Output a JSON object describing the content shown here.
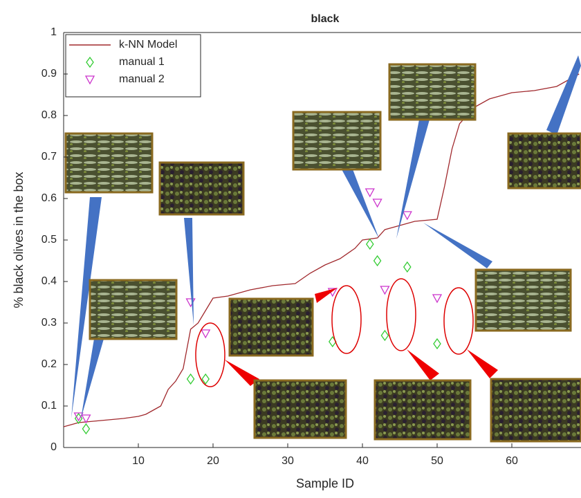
{
  "chart_data": {
    "type": "line",
    "title": "black",
    "x_label": "Sample ID",
    "y_label": "% black olives in the box",
    "xlim": [
      0,
      69
    ],
    "ylim": [
      0,
      1
    ],
    "xticks": [
      10,
      20,
      30,
      40,
      50,
      60
    ],
    "yticks": [
      0,
      0.1,
      0.2,
      0.3,
      0.4,
      0.5,
      0.6,
      0.7,
      0.8,
      0.9,
      1
    ],
    "legend": "top-left",
    "series": [
      {
        "name": "k-NN Model",
        "color": "#a0282c",
        "style": "step-line",
        "x": [
          0,
          1,
          2,
          5,
          8,
          10,
          11,
          12,
          13,
          14,
          15,
          16,
          17,
          18,
          19,
          20,
          22,
          25,
          28,
          31,
          33,
          35,
          37,
          39,
          40,
          42,
          43,
          45,
          47,
          50,
          51,
          52,
          53,
          55,
          57,
          60,
          63,
          66,
          69
        ],
        "values": [
          0.05,
          0.055,
          0.06,
          0.065,
          0.07,
          0.075,
          0.08,
          0.09,
          0.1,
          0.14,
          0.16,
          0.19,
          0.285,
          0.3,
          0.33,
          0.36,
          0.365,
          0.38,
          0.39,
          0.395,
          0.42,
          0.44,
          0.455,
          0.48,
          0.5,
          0.505,
          0.525,
          0.535,
          0.545,
          0.55,
          0.63,
          0.72,
          0.78,
          0.82,
          0.84,
          0.855,
          0.86,
          0.87,
          0.9
        ]
      },
      {
        "name": "manual 1",
        "color": "#33cc33",
        "style": "diamond",
        "x": [
          2,
          3,
          17,
          19,
          36,
          41,
          42,
          43,
          46,
          50
        ],
        "values": [
          0.07,
          0.045,
          0.165,
          0.165,
          0.255,
          0.49,
          0.45,
          0.27,
          0.435,
          0.25
        ]
      },
      {
        "name": "manual 2",
        "color": "#cc33cc",
        "style": "triangle",
        "x": [
          2,
          3,
          17,
          19,
          36,
          41,
          42,
          43,
          46,
          50
        ],
        "values": [
          0.075,
          0.07,
          0.35,
          0.275,
          0.375,
          0.615,
          0.59,
          0.38,
          0.56,
          0.36
        ]
      }
    ]
  }
}
